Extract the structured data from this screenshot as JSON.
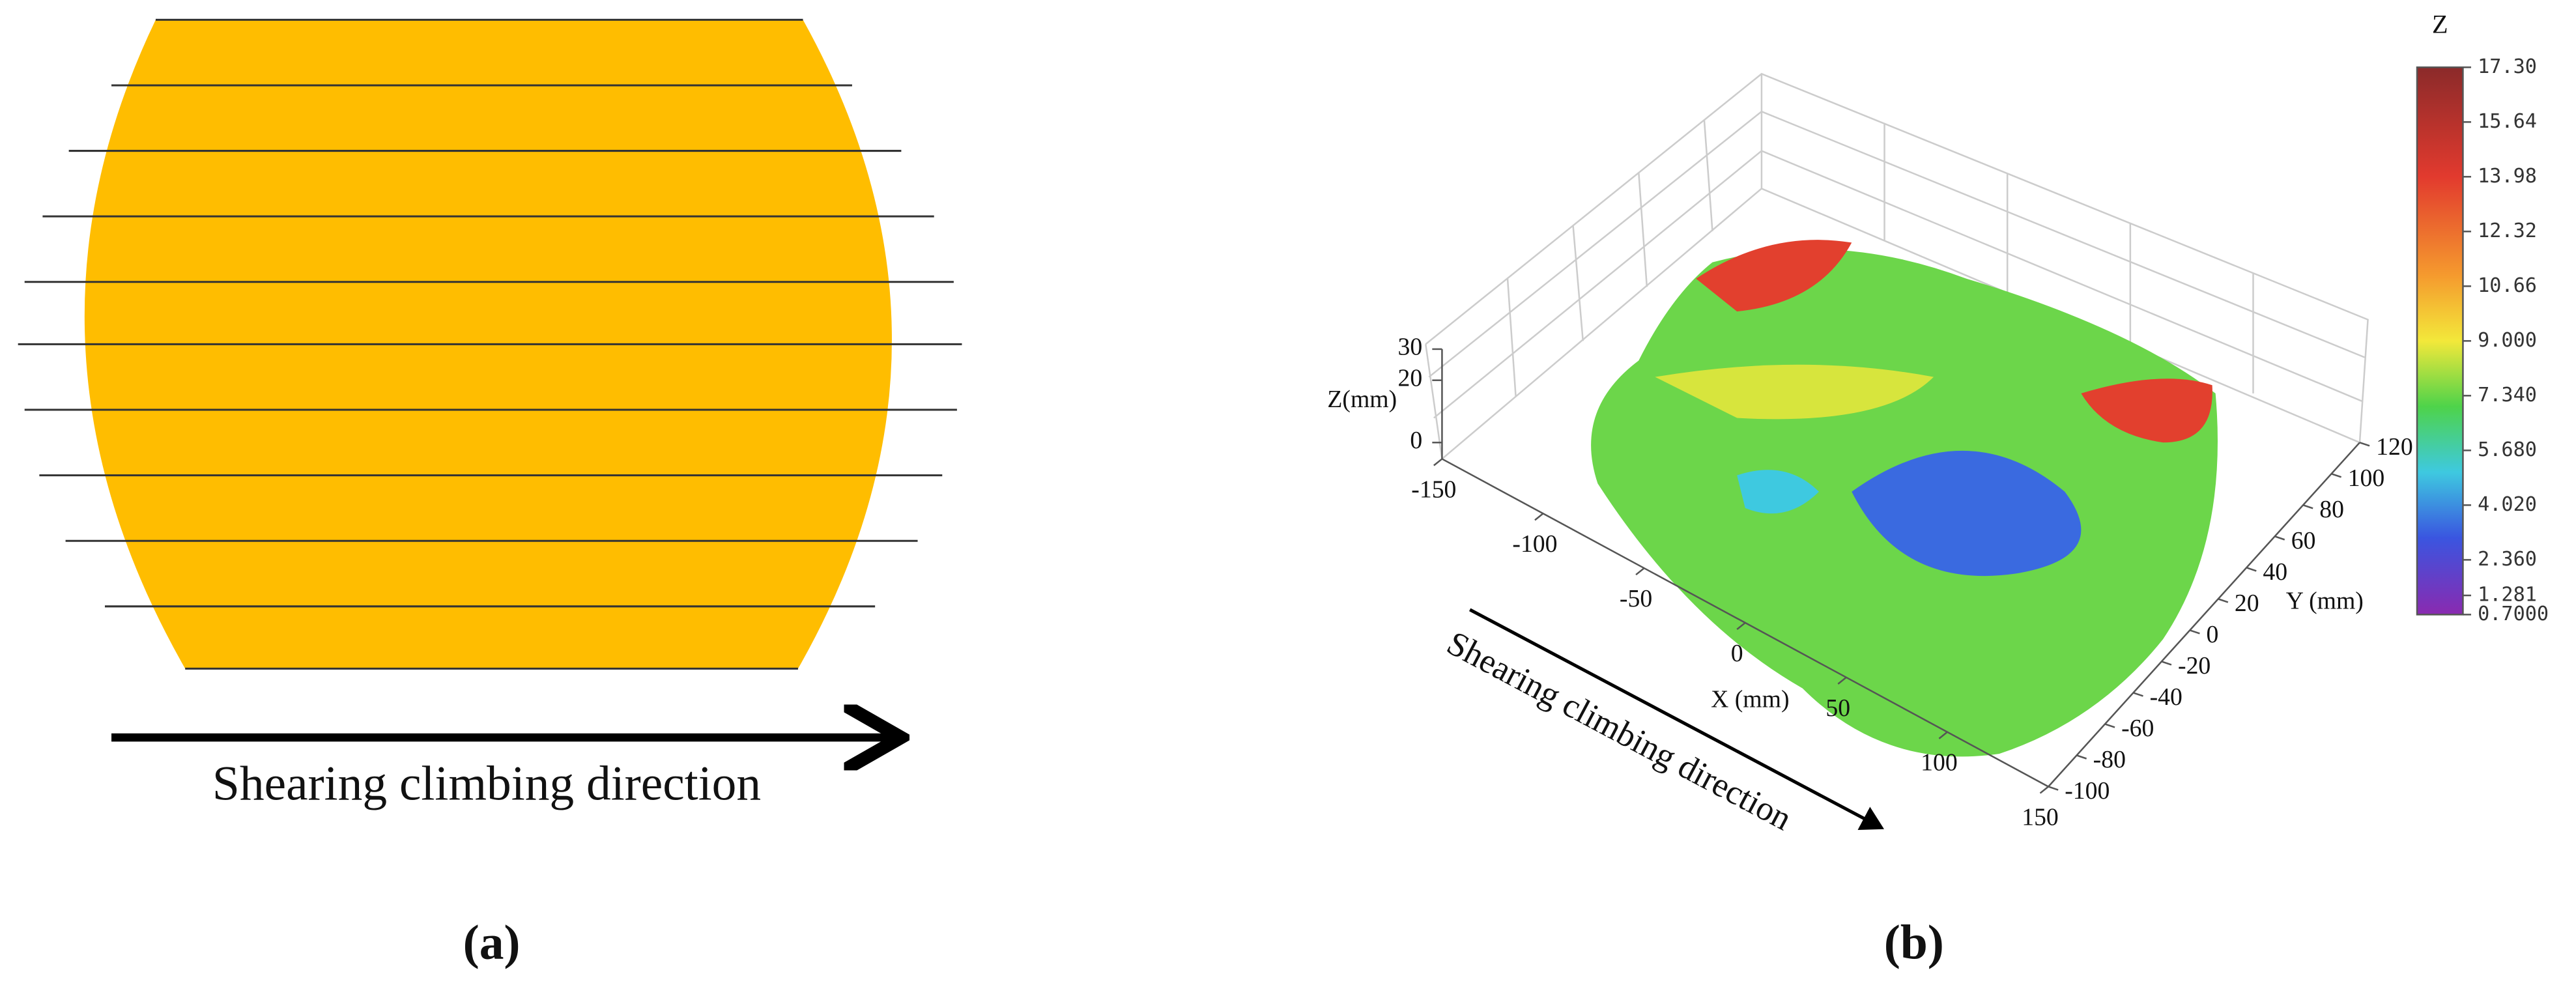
{
  "panel_a": {
    "direction_label": "Shearing climbing direction",
    "caption": "(a)"
  },
  "panel_b": {
    "z_axis_label": "Z(mm)",
    "x_axis_label": "X (mm)",
    "y_axis_label": "Y (mm)",
    "xlim": [
      -150,
      150
    ],
    "xticks": [
      -150,
      -100,
      -50,
      0,
      50,
      100,
      150
    ],
    "ylim": [
      -100,
      120
    ],
    "yticks": [
      -100,
      -80,
      -60,
      -40,
      -20,
      0,
      20,
      40,
      60,
      80,
      100,
      120
    ],
    "zlim": [
      0,
      30
    ],
    "zticks": [
      0,
      20,
      30
    ],
    "colorbar": {
      "title": "Z",
      "lim": [
        0.7,
        17.3
      ],
      "ticks": [
        {
          "value": 17.3,
          "label": "17.30"
        },
        15.64,
        13.98,
        12.32,
        10.66,
        {
          "value": 9,
          "label": "9.000"
        },
        {
          "value": 7.34,
          "label": "7.340"
        },
        {
          "value": 5.68,
          "label": "5.680"
        },
        {
          "value": 4.02,
          "label": "4.020"
        },
        {
          "value": 2.36,
          "label": "2.360"
        },
        1.281,
        {
          "value": 0.7,
          "label": "0.7000"
        }
      ]
    },
    "direction_label": "Shearing climbing direction",
    "caption": "(b)"
  }
}
